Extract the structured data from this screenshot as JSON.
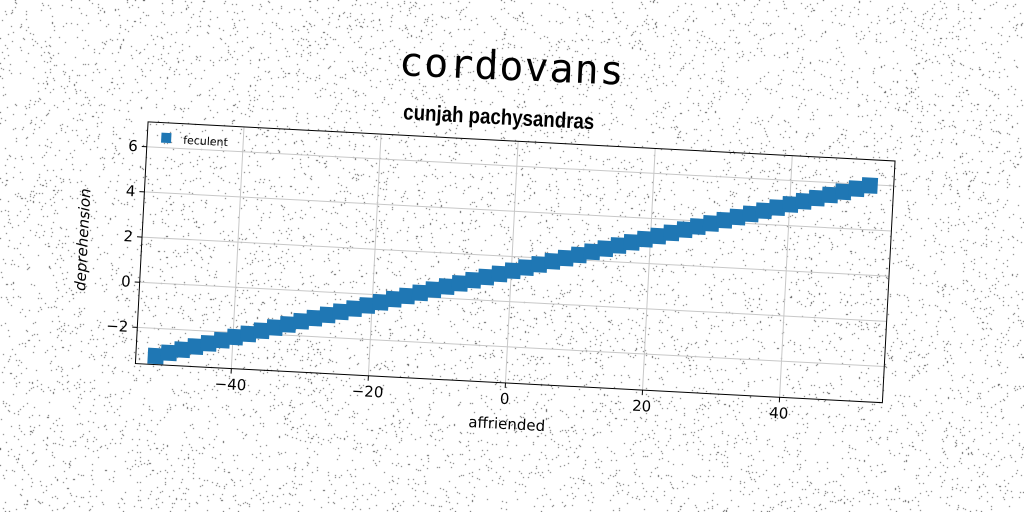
{
  "suptitle": "cordovans",
  "chart_data": {
    "type": "scatter",
    "title": "cunjah pachysandras",
    "xlabel": "affriended",
    "ylabel": "deprehension",
    "xlim": [
      -54,
      55
    ],
    "ylim": [
      -3.6,
      7.1
    ],
    "xticks": [
      -40,
      -20,
      0,
      20,
      40
    ],
    "yticks": [
      -2,
      0,
      2,
      4,
      6
    ],
    "xtick_labels": [
      "−40",
      "−20",
      "0",
      "20",
      "40"
    ],
    "ytick_labels": [
      "−2",
      "0",
      "2",
      "4",
      "6"
    ],
    "grid": true,
    "legend_position": "top-left",
    "series": [
      {
        "name": "feculent",
        "marker": "square",
        "color": "#1f77b4",
        "x": [
          -51.1,
          -49.2,
          -47.3,
          -45.4,
          -43.5,
          -41.6,
          -39.7,
          -37.8,
          -35.9,
          -34.0,
          -32.1,
          -30.2,
          -28.3,
          -26.4,
          -24.5,
          -22.6,
          -20.7,
          -18.8,
          -16.9,
          -15.0,
          -13.1,
          -11.2,
          -9.3,
          -7.4,
          -5.5,
          -3.6,
          -1.7,
          0.2,
          2.1,
          4.0,
          5.9,
          7.8,
          9.7,
          11.6,
          13.5,
          15.4,
          17.3,
          19.2,
          21.1,
          23.0,
          24.9,
          26.8,
          28.7,
          30.6,
          32.5,
          34.4,
          36.3,
          38.2,
          40.1,
          42.0,
          43.9,
          45.8,
          47.7,
          49.6,
          51.5
        ],
        "y": [
          -3.22,
          -3.05,
          -2.88,
          -2.71,
          -2.54,
          -2.37,
          -2.2,
          -2.03,
          -1.86,
          -1.69,
          -1.52,
          -1.35,
          -1.18,
          -1.01,
          -0.84,
          -0.67,
          -0.5,
          -0.33,
          -0.16,
          0.01,
          0.18,
          0.35,
          0.52,
          0.69,
          0.86,
          1.03,
          1.2,
          1.37,
          1.54,
          1.71,
          1.88,
          2.05,
          2.22,
          2.39,
          2.56,
          2.73,
          2.9,
          3.07,
          3.24,
          3.41,
          3.58,
          3.75,
          3.92,
          4.09,
          4.26,
          4.43,
          4.6,
          4.77,
          4.94,
          5.11,
          5.28,
          5.45,
          5.62,
          5.79,
          5.96
        ]
      }
    ]
  }
}
